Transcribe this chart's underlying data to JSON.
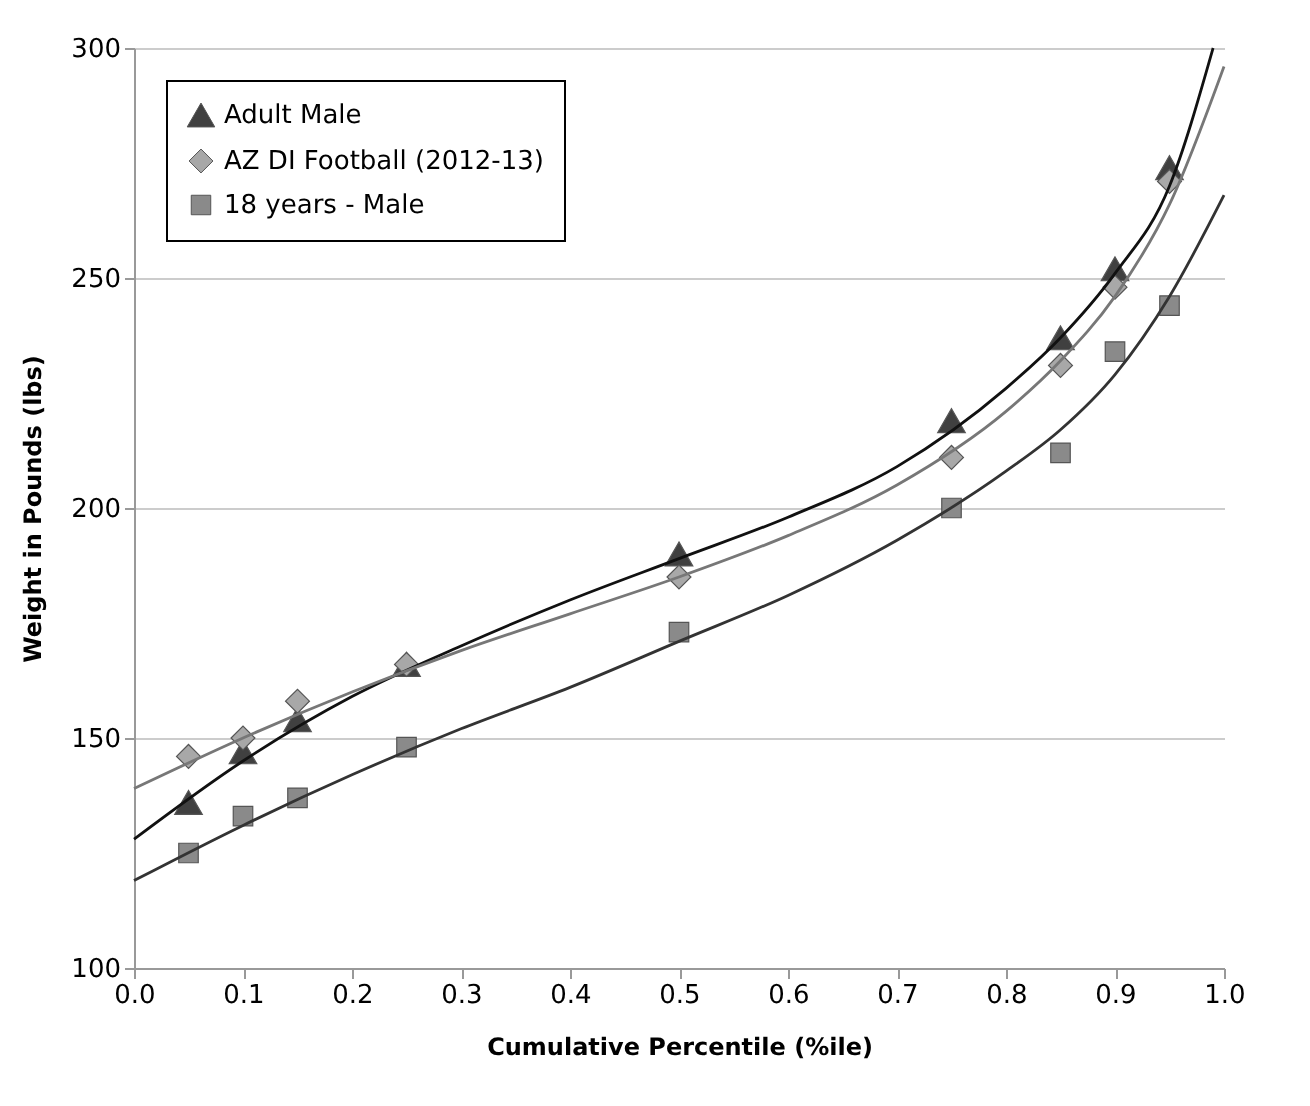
{
  "chart_data": {
    "type": "scatter",
    "xlabel": "Cumulative Percentile (%ile)",
    "ylabel": "Weight in Pounds (lbs)",
    "xlim": [
      0,
      1
    ],
    "ylim": [
      100,
      300
    ],
    "xticks": [
      {
        "value": 0,
        "label": "0.0"
      },
      {
        "value": 0.1,
        "label": "0.1"
      },
      {
        "value": 0.2,
        "label": "0.2"
      },
      {
        "value": 0.3,
        "label": "0.3"
      },
      {
        "value": 0.4,
        "label": "0.4"
      },
      {
        "value": 0.5,
        "label": "0.5"
      },
      {
        "value": 0.6,
        "label": "0.6"
      },
      {
        "value": 0.7,
        "label": "0.7"
      },
      {
        "value": 0.8,
        "label": "0.8"
      },
      {
        "value": 0.9,
        "label": "0.9"
      },
      {
        "value": 1,
        "label": "1.0"
      }
    ],
    "yticks": [
      100,
      150,
      200,
      250,
      300
    ],
    "grid": "y",
    "legend": "top left",
    "line_style": "solid",
    "series": [
      {
        "name": "Adult Male",
        "color": "#404040",
        "marker": "triangle",
        "x": [
          0.05,
          0.1,
          0.15,
          0.25,
          0.5,
          0.75,
          0.85,
          0.9,
          0.95
        ],
        "values": [
          136,
          147,
          154,
          166,
          190,
          219,
          237,
          252,
          274
        ]
      },
      {
        "name": "AZ DI Football (2012-13)",
        "color": "#a8a8a8",
        "marker": "diamond",
        "x": [
          0.05,
          0.1,
          0.15,
          0.25,
          0.5,
          0.75,
          0.85,
          0.9,
          0.95
        ],
        "values": [
          146,
          150,
          158,
          166,
          185,
          211,
          231,
          248,
          271
        ]
      },
      {
        "name": "18 years - Male",
        "color": "#8a8a8a",
        "marker": "square",
        "x": [
          0.05,
          0.1,
          0.15,
          0.25,
          0.5,
          0.75,
          0.85,
          0.9,
          0.95
        ],
        "values": [
          125,
          133,
          137,
          148,
          173,
          200,
          212,
          234,
          244
        ]
      },
      {
        "type": "line",
        "color": "#111111",
        "marker": "none",
        "x": [
          0,
          0.1,
          0.2,
          0.3,
          0.4,
          0.5,
          0.6,
          0.7,
          0.8,
          0.85,
          0.9,
          0.95,
          0.99
        ],
        "values": [
          128,
          145,
          159,
          170,
          180,
          189,
          198,
          209,
          226,
          237,
          251,
          270,
          300
        ]
      },
      {
        "type": "line",
        "color": "#777777",
        "marker": "none",
        "x": [
          0,
          0.1,
          0.2,
          0.3,
          0.4,
          0.5,
          0.6,
          0.7,
          0.8,
          0.85,
          0.9,
          0.95,
          1
        ],
        "values": [
          139,
          150,
          160,
          169,
          177,
          185,
          194,
          205,
          221,
          232,
          246,
          266,
          296
        ]
      },
      {
        "type": "line",
        "color": "#333333",
        "marker": "none",
        "x": [
          0,
          0.1,
          0.2,
          0.3,
          0.4,
          0.5,
          0.6,
          0.7,
          0.8,
          0.85,
          0.9,
          0.95,
          1
        ],
        "values": [
          119,
          131,
          142,
          152,
          161,
          171,
          181,
          193,
          208,
          217,
          229,
          246,
          268
        ]
      }
    ]
  }
}
